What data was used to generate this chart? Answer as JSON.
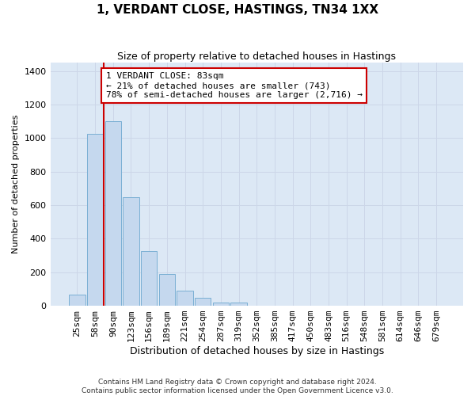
{
  "title": "1, VERDANT CLOSE, HASTINGS, TN34 1XX",
  "subtitle": "Size of property relative to detached houses in Hastings",
  "xlabel": "Distribution of detached houses by size in Hastings",
  "ylabel": "Number of detached properties",
  "bar_labels": [
    "25sqm",
    "58sqm",
    "90sqm",
    "123sqm",
    "156sqm",
    "189sqm",
    "221sqm",
    "254sqm",
    "287sqm",
    "319sqm",
    "352sqm",
    "385sqm",
    "417sqm",
    "450sqm",
    "483sqm",
    "516sqm",
    "548sqm",
    "581sqm",
    "614sqm",
    "646sqm",
    "679sqm"
  ],
  "bar_values": [
    65,
    1025,
    1100,
    650,
    325,
    190,
    90,
    50,
    20,
    20,
    0,
    0,
    0,
    0,
    0,
    0,
    0,
    0,
    0,
    0,
    0
  ],
  "bar_color": "#c5d8ee",
  "bar_edge_color": "#7aafd4",
  "grid_color": "#ccd6e8",
  "bg_color": "#dce8f5",
  "annotation_text": "1 VERDANT CLOSE: 83sqm\n← 21% of detached houses are smaller (743)\n78% of semi-detached houses are larger (2,716) →",
  "annotation_box_facecolor": "#ffffff",
  "annotation_box_edgecolor": "#cc0000",
  "vline_x_index": 1.5,
  "vline_color": "#cc0000",
  "ylim": [
    0,
    1450
  ],
  "yticks": [
    0,
    200,
    400,
    600,
    800,
    1000,
    1200,
    1400
  ],
  "footnote": "Contains HM Land Registry data © Crown copyright and database right 2024.\nContains public sector information licensed under the Open Government Licence v3.0.",
  "title_fontsize": 11,
  "subtitle_fontsize": 9,
  "xlabel_fontsize": 9,
  "ylabel_fontsize": 8,
  "tick_fontsize": 8,
  "annot_fontsize": 8
}
